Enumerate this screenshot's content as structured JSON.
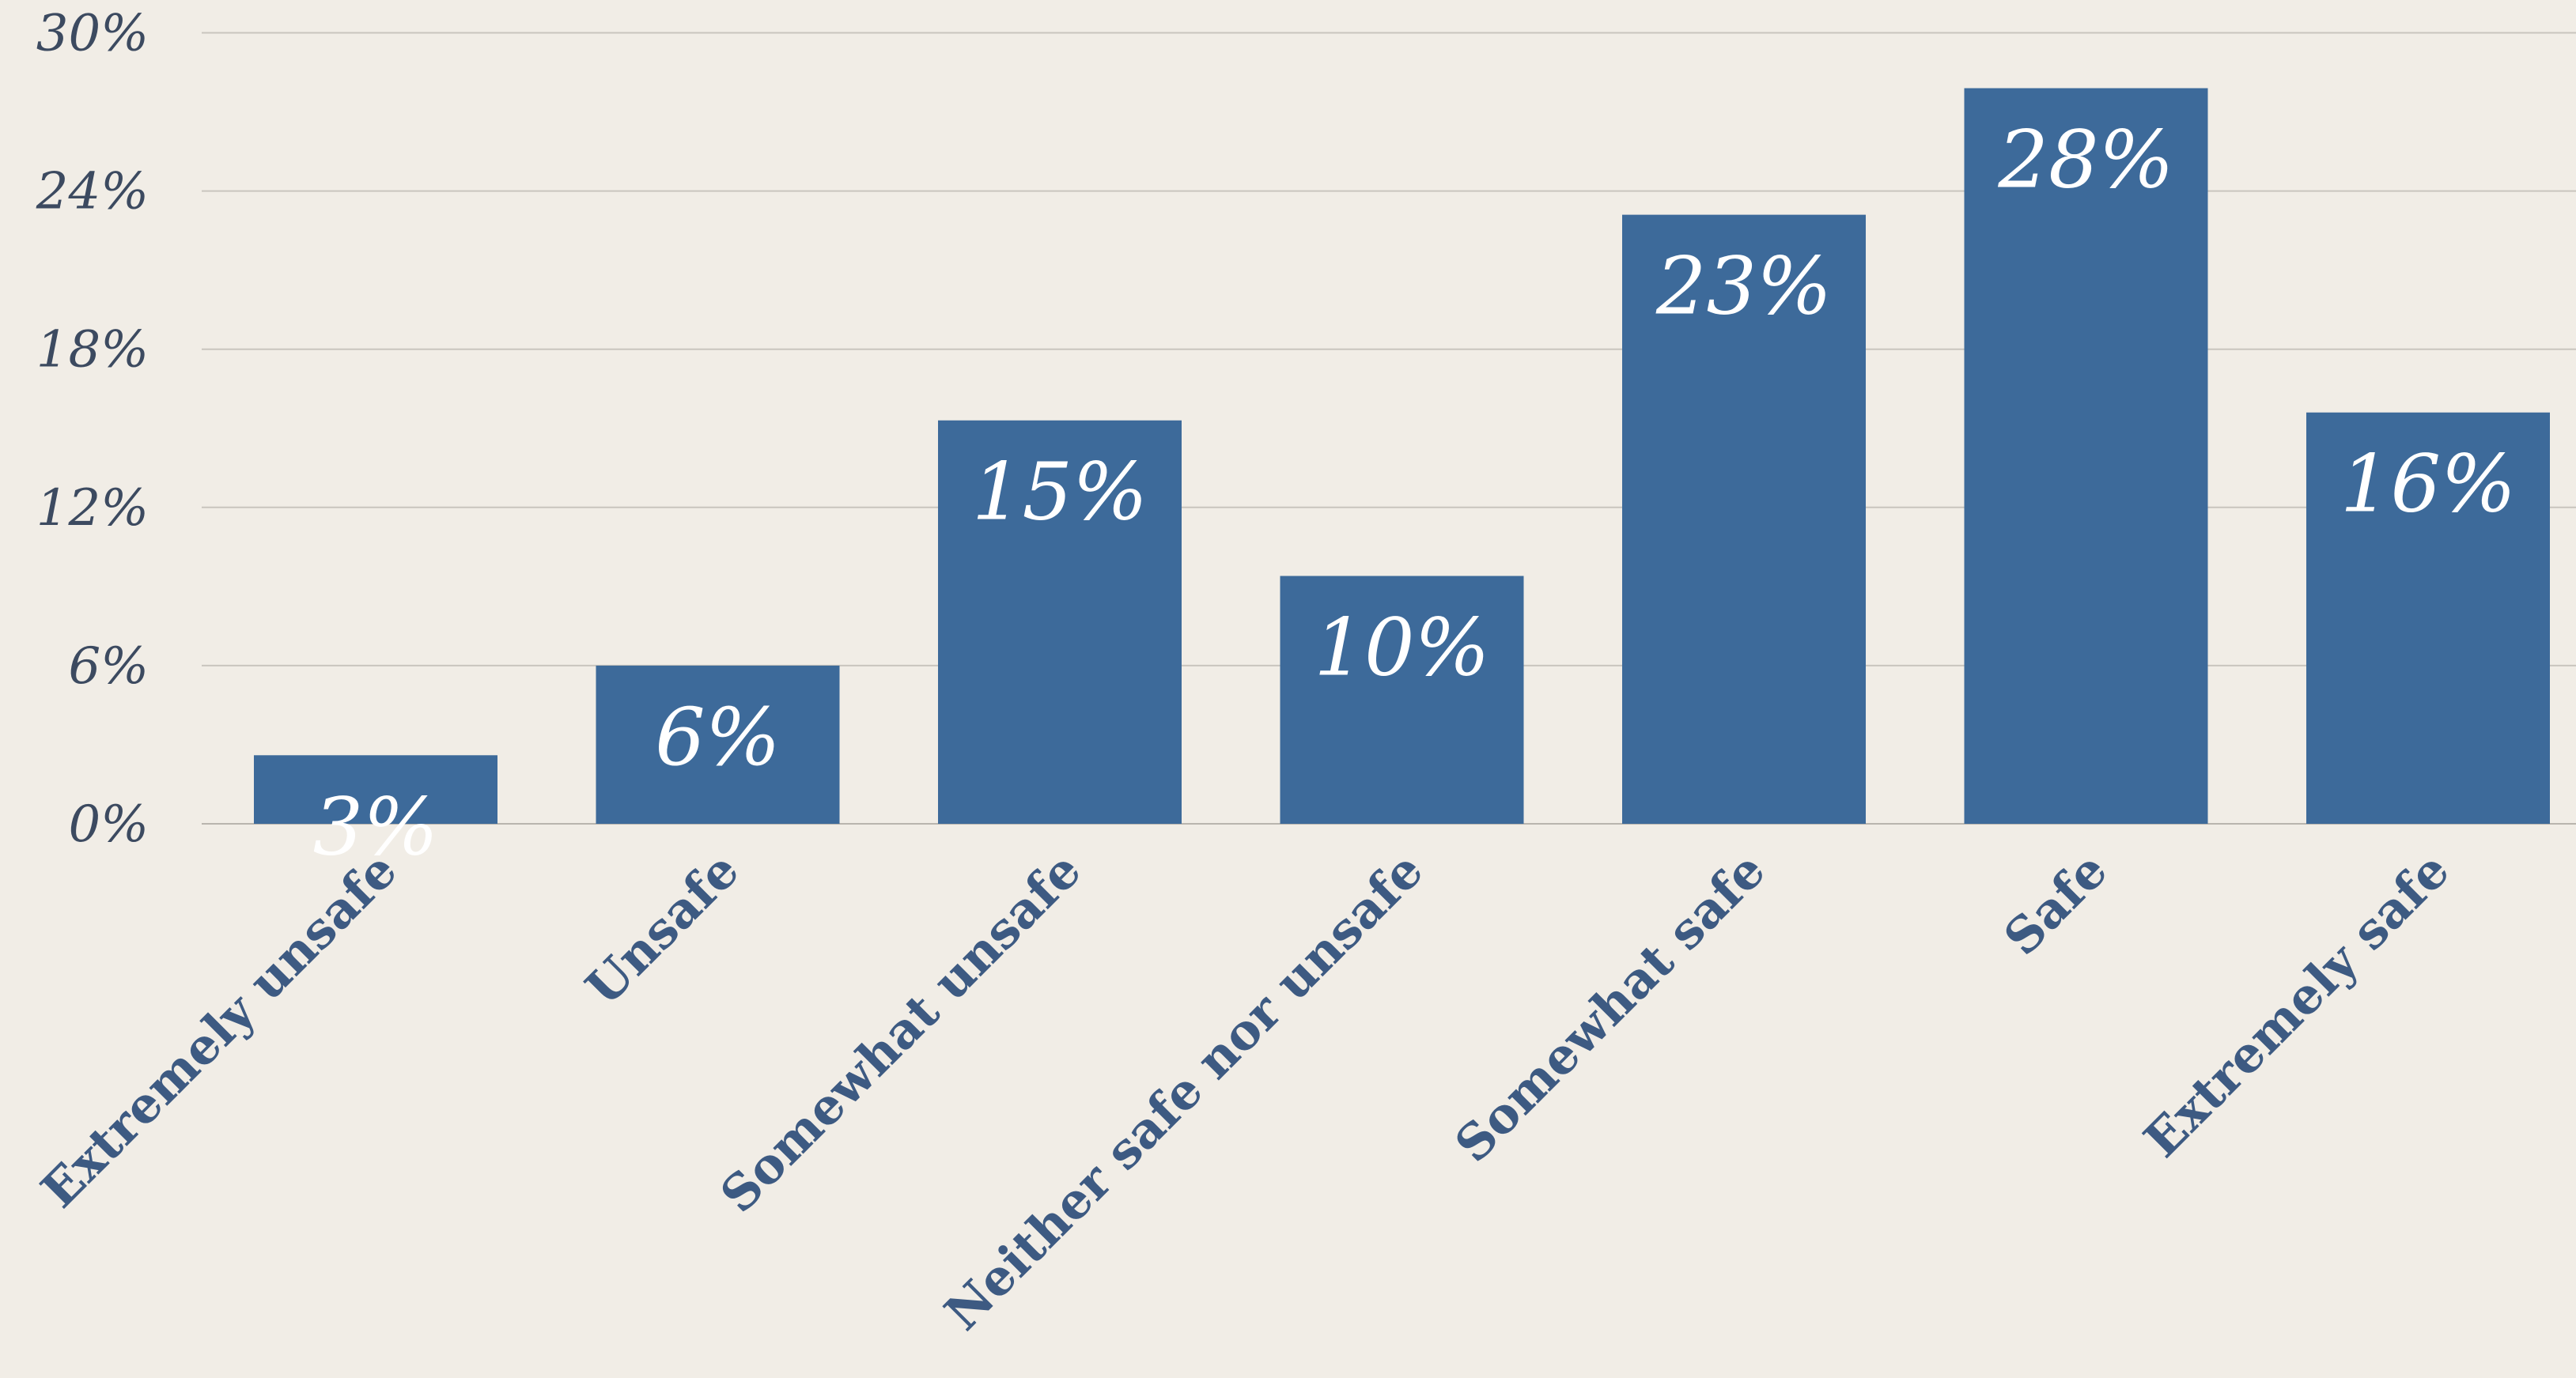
{
  "chart_data": {
    "type": "bar",
    "categories": [
      "Extremely unsafe",
      "Unsafe",
      "Somewhat unsafe",
      "Neither safe nor unsafe",
      "Somewhat safe",
      "Safe",
      "Extremely safe"
    ],
    "values": [
      3,
      6,
      15,
      10,
      23,
      28,
      16
    ],
    "bar_value_bounds": [
      2.6,
      6.0,
      15.3,
      9.4,
      23.1,
      27.9,
      15.6
    ],
    "data_labels": [
      "3%",
      "6%",
      "15%",
      "10%",
      "23%",
      "28%",
      "16%"
    ],
    "y_ticks": [
      "0%",
      "6%",
      "12%",
      "18%",
      "24%",
      "30%"
    ],
    "y_tick_values": [
      0,
      6,
      12,
      18,
      24,
      30
    ],
    "ylim": [
      0,
      30
    ],
    "title": "",
    "xlabel": "",
    "ylabel": "",
    "grid": true,
    "legend": "none",
    "colors": {
      "bar": "#3d6a9a",
      "bar_label": "#ffffff",
      "tick_text": "#3c4a60",
      "category_text": "#3d5a82",
      "gridline": "#c9c5be",
      "background": "#f1ede6"
    }
  }
}
